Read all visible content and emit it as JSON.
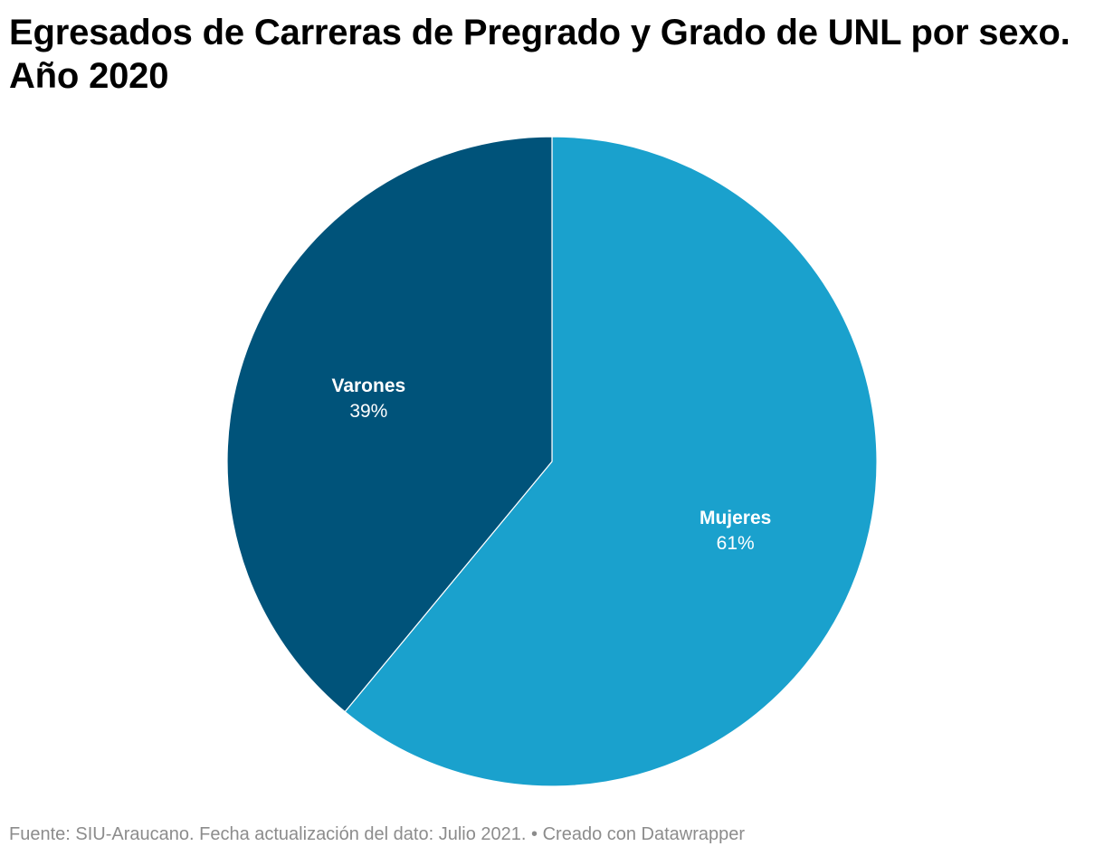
{
  "chart_data": {
    "type": "pie",
    "title": "Egresados de Carreras de Pregrado y Grado de UNL por sexo. Año 2020",
    "slices": [
      {
        "label": "Mujeres",
        "value": 61,
        "value_label": "61%",
        "color": "#1aa1cd"
      },
      {
        "label": "Varones",
        "value": 39,
        "value_label": "39%",
        "color": "#00537a"
      }
    ],
    "start_angle_deg": 0,
    "direction": "clockwise",
    "slice_border_color": "#ffffff"
  },
  "footer": {
    "source": "Fuente: SIU-Araucano. Fecha actualización del dato: Julio 2021.",
    "separator": " • ",
    "credit": "Creado con Datawrapper"
  }
}
